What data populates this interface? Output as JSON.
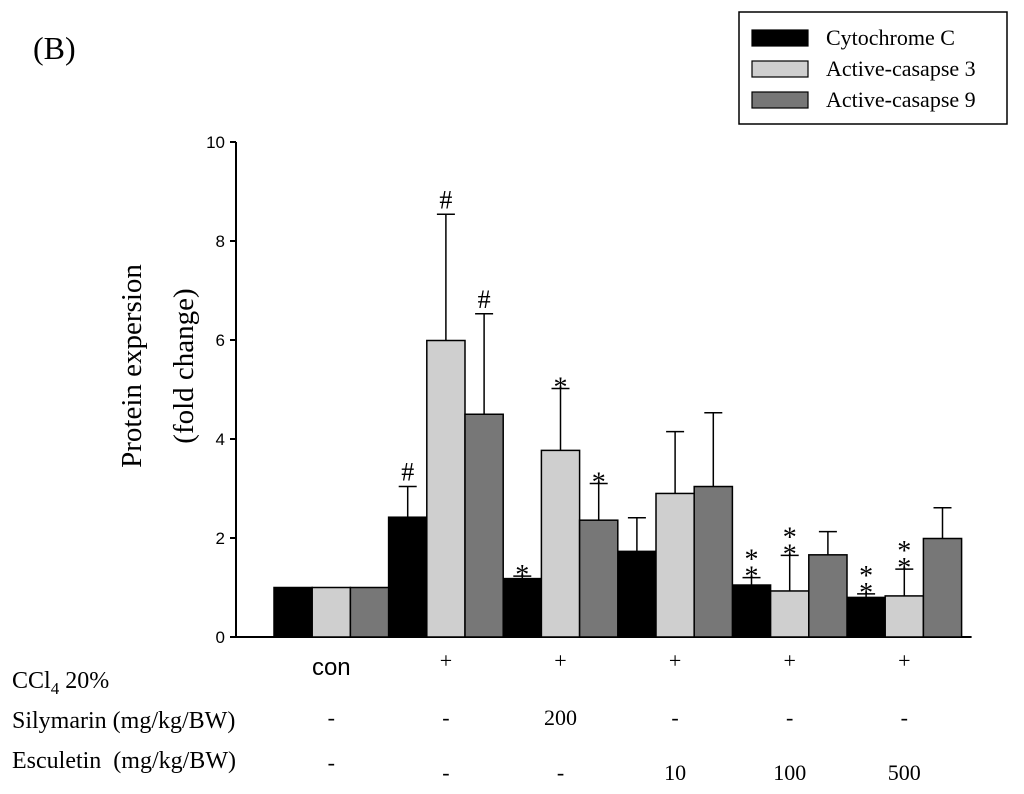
{
  "panel_label": "(B)",
  "chart_data": {
    "type": "bar",
    "title": "",
    "xlabel": "",
    "ylabel": "Protein expersion",
    "ylabel_line2": "(fold change)",
    "ylim": [
      0,
      10
    ],
    "yticks": [
      0,
      2,
      4,
      6,
      8,
      10
    ],
    "grid": false,
    "legend_position": "top-right",
    "categories": [
      "con",
      "+",
      "+",
      "+",
      "+",
      "+"
    ],
    "series": [
      {
        "name": "Cytochrome C",
        "color": "#000000",
        "values": [
          1.0,
          2.42,
          1.18,
          1.73,
          1.05,
          0.8
        ],
        "errors": [
          0,
          0.62,
          0.05,
          0.68,
          0.15,
          0.07
        ],
        "annotations": [
          "",
          "#",
          "*",
          "",
          "**",
          "**"
        ]
      },
      {
        "name": "Active-casapse 3",
        "color": "#cfcfcf",
        "values": [
          1.0,
          5.99,
          3.77,
          2.9,
          0.93,
          0.83
        ],
        "errors": [
          0,
          2.55,
          1.25,
          1.25,
          0.72,
          0.54
        ],
        "annotations": [
          "",
          "#",
          "*",
          "",
          "**",
          "**"
        ]
      },
      {
        "name": "Active-casapse 9",
        "color": "#777777",
        "values": [
          1.0,
          4.5,
          2.36,
          3.04,
          1.66,
          1.99
        ],
        "errors": [
          0,
          2.03,
          0.74,
          1.49,
          0.47,
          0.62
        ],
        "annotations": [
          "",
          "#",
          "*",
          "",
          "",
          ""
        ]
      }
    ]
  },
  "treatments": {
    "ccl4_label": "CCl",
    "ccl4_subscript": "4",
    "ccl4_suffix": " 20%",
    "silymarin_label": "Silymarin (mg/kg/BW)",
    "silymarin_values": [
      "-",
      "-",
      "200",
      "-",
      "-",
      "-"
    ],
    "esculetin_label": "Esculetin  (mg/kg/BW)",
    "esculetin_values": [
      "-",
      "-",
      "-",
      "10",
      "100",
      "500"
    ]
  }
}
